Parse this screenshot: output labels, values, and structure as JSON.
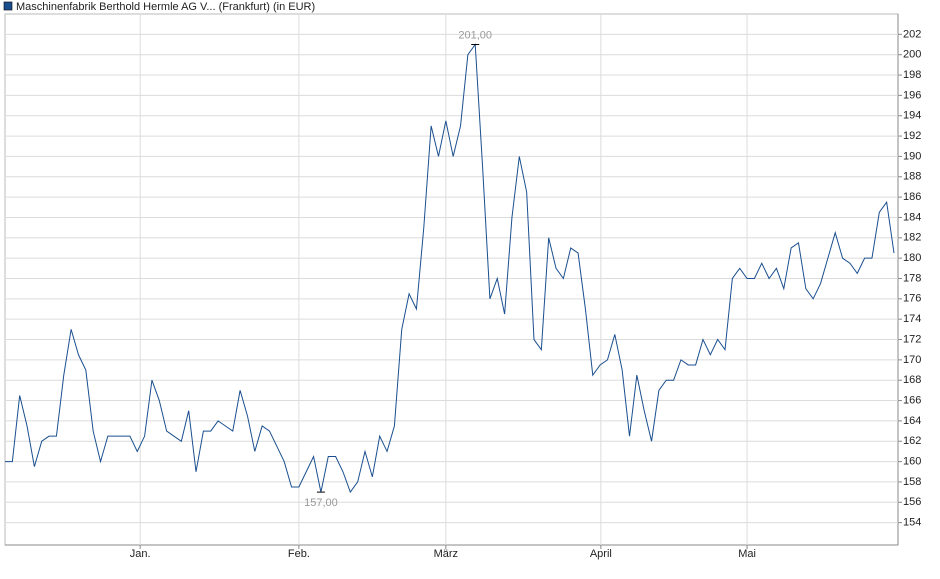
{
  "chart_data": {
    "type": "line",
    "series": [
      {
        "name": "Maschinenfabrik Berthold Hermle AG V... (Frankfurt) (in EUR)",
        "color": "#1a4f8f",
        "values": [
          160,
          160,
          166.5,
          163.5,
          159.5,
          162,
          162.5,
          162.5,
          168.5,
          173,
          170.5,
          169,
          163,
          160,
          162.5,
          162.5,
          162.5,
          162.5,
          161,
          162.5,
          168,
          166,
          163,
          162.5,
          162,
          165,
          159,
          163,
          163,
          164,
          163.5,
          163,
          167,
          164.5,
          161,
          163.5,
          163,
          161.5,
          160,
          157.5,
          157.5,
          159,
          160.5,
          157,
          160.5,
          160.5,
          159,
          157,
          158,
          161,
          158.5,
          162.5,
          161,
          163.5,
          173,
          176.5,
          175,
          183,
          193,
          190,
          193.5,
          190,
          193,
          200,
          201,
          189,
          176,
          178,
          174.5,
          184,
          190,
          186.5,
          172,
          171,
          182,
          179,
          178,
          181,
          180.5,
          175,
          168.5,
          169.5,
          170,
          172.5,
          169,
          162.5,
          168.5,
          165,
          162,
          167,
          168,
          168,
          170,
          169.5,
          169.5,
          172,
          170.5,
          172,
          171,
          178,
          179,
          178,
          178,
          179.5,
          178,
          179,
          177,
          181,
          181.5,
          177,
          176,
          177.5,
          180,
          182.5,
          180,
          179.5,
          178.5,
          180,
          180,
          184.5,
          185.5,
          180.5
        ]
      }
    ],
    "xlim": [
      0,
      121
    ],
    "xticks": [
      {
        "value": 18.4,
        "label": "Jan."
      },
      {
        "value": 40,
        "label": "Feb."
      },
      {
        "value": 60,
        "label": "März"
      },
      {
        "value": 81.1,
        "label": "April"
      },
      {
        "value": 101,
        "label": "Mai"
      }
    ],
    "ylim": [
      151.8,
      204
    ],
    "yticks": [
      154,
      156,
      158,
      160,
      162,
      164,
      166,
      168,
      170,
      172,
      174,
      176,
      178,
      180,
      182,
      184,
      186,
      188,
      190,
      192,
      194,
      196,
      198,
      200,
      202
    ],
    "annotations": [
      {
        "value": 201,
        "label": "201,00"
      },
      {
        "value": 157,
        "label": "157,00"
      }
    ],
    "grid": true
  }
}
